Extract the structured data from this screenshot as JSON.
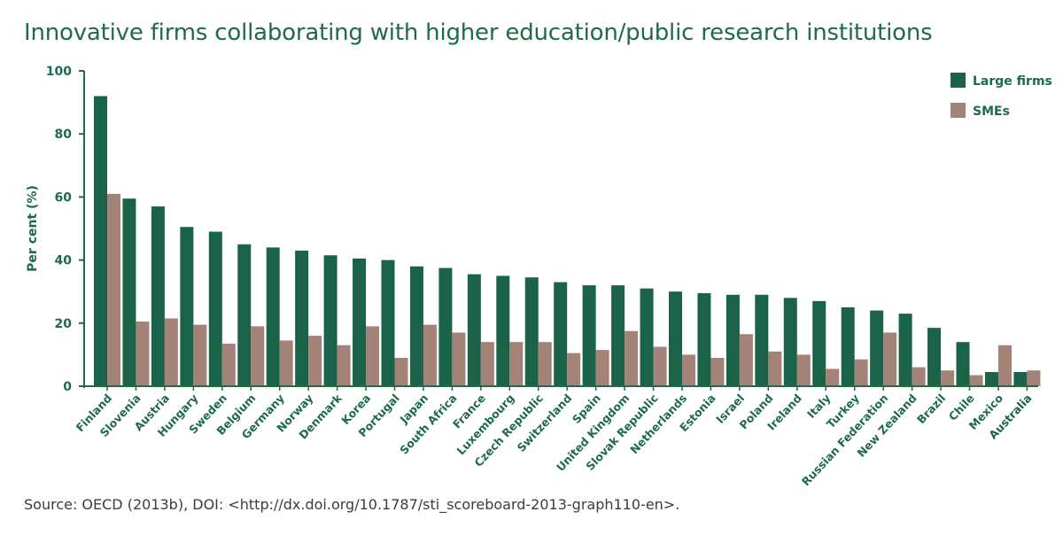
{
  "title": "Innovative firms collaborating with higher education/public research institutions",
  "source": "Source: OECD (2013b), DOI: <http://dx.doi.org/10.1787/sti_scoreboard-2013-graph110-en>.",
  "colors": {
    "large": "#1a6348",
    "sme": "#a38378",
    "axis": "#1e6b4a",
    "text": "#1e6b4a"
  },
  "chart_data": {
    "type": "bar",
    "ylabel": "Per cent (%)",
    "ylim": [
      0,
      100
    ],
    "yticks": [
      0,
      20,
      40,
      60,
      80,
      100
    ],
    "legend_position": "top-right",
    "highlight_category": "Australia",
    "categories": [
      "Finland",
      "Slovenia",
      "Austria",
      "Hungary",
      "Sweden",
      "Belgium",
      "Germany",
      "Norway",
      "Denmark",
      "Korea",
      "Portugal",
      "Japan",
      "South Africa",
      "France",
      "Luxembourg",
      "Czech Republic",
      "Switzerland",
      "Spain",
      "United Kingdom",
      "Slovak Republic",
      "Netherlands",
      "Estonia",
      "Israel",
      "Poland",
      "Ireland",
      "Italy",
      "Turkey",
      "Russian Federation",
      "New Zealand",
      "Brazil",
      "Chile",
      "Mexico",
      "Australia"
    ],
    "series": [
      {
        "name": "Large firms",
        "values": [
          92,
          59.5,
          57,
          50.5,
          49,
          45,
          44,
          43,
          41.5,
          40.5,
          40,
          38,
          37.5,
          35.5,
          35,
          34.5,
          33,
          32,
          32,
          31,
          30,
          29.5,
          29,
          29,
          28,
          27,
          25,
          24,
          23,
          18.5,
          14,
          4.5,
          4.5
        ]
      },
      {
        "name": "SMEs",
        "values": [
          61,
          20.5,
          21.5,
          19.5,
          13.5,
          19,
          14.5,
          16,
          13,
          19,
          9,
          19.5,
          17,
          14,
          14,
          14,
          10.5,
          11.5,
          17.5,
          12.5,
          10,
          9,
          16.5,
          11,
          10,
          5.5,
          8.5,
          17,
          6,
          5,
          3.5,
          13,
          5
        ]
      }
    ]
  }
}
